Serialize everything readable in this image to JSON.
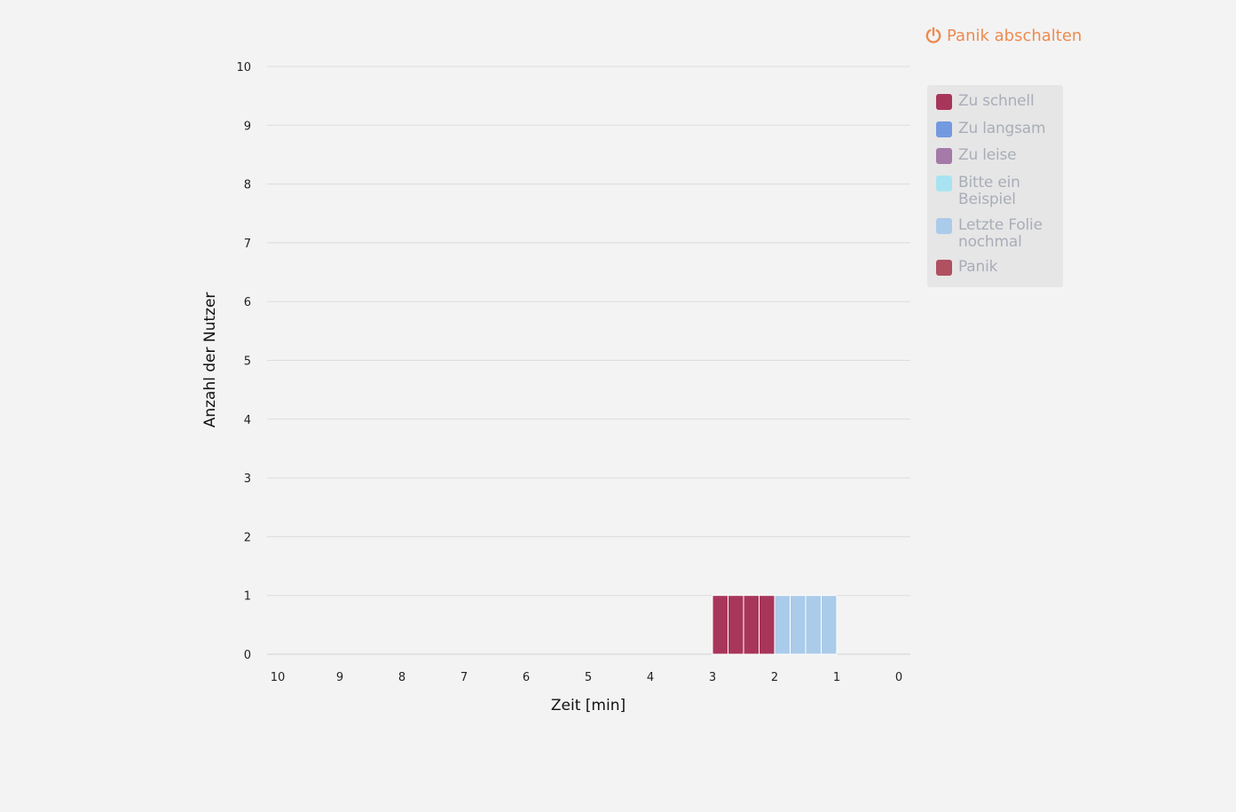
{
  "header": {
    "panic_button_label": "Panik abschalten",
    "panic_icon": "power-icon",
    "panic_color": "#ec8b50"
  },
  "legend": {
    "items": [
      {
        "label": "Zu schnell",
        "color": "#a8365a"
      },
      {
        "label": "Zu langsam",
        "color": "#7399e0"
      },
      {
        "label": "Zu leise",
        "color": "#a37aa8"
      },
      {
        "label": "Bitte ein Beispiel",
        "color": "#a9e3f1"
      },
      {
        "label": "Letzte Folie nochmal",
        "color": "#abcbea"
      },
      {
        "label": "Panik",
        "color": "#b05060"
      }
    ]
  },
  "chart_data": {
    "type": "bar",
    "xlabel": "Zeit [min]",
    "ylabel": "Anzahl der Nutzer",
    "xlim": [
      10,
      0
    ],
    "ylim": [
      0,
      10
    ],
    "x_ticks": [
      "10",
      "9",
      "8",
      "7",
      "6",
      "5",
      "4",
      "3",
      "2",
      "1",
      "0"
    ],
    "y_ticks": [
      "0",
      "1",
      "2",
      "3",
      "4",
      "5",
      "6",
      "7",
      "8",
      "9",
      "10"
    ],
    "grid": true,
    "legend_position": "right",
    "bin_width_min": 0.25,
    "series": [
      {
        "name": "Zu schnell",
        "x": [
          2.875,
          2.625,
          2.375,
          2.125
        ],
        "values": [
          1,
          1,
          1,
          1
        ]
      },
      {
        "name": "Letzte Folie nochmal",
        "x": [
          1.875,
          1.625,
          1.375,
          1.125
        ],
        "values": [
          1,
          1,
          1,
          1
        ]
      }
    ]
  }
}
